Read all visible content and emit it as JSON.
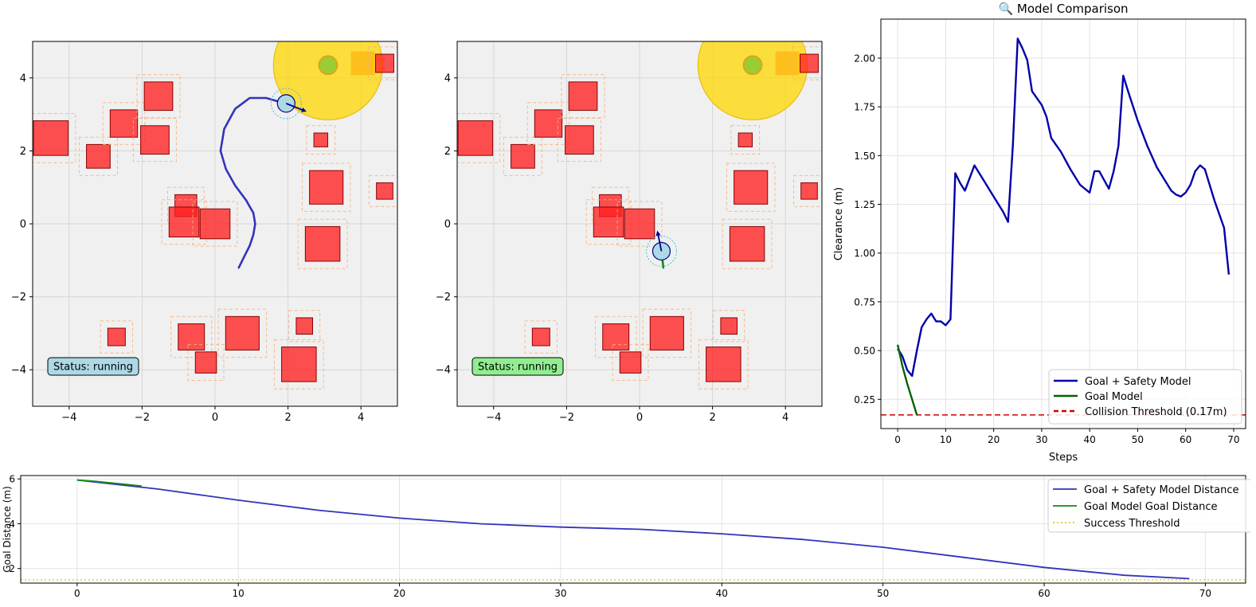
{
  "chart_data": [
    {
      "type": "scatter",
      "panel": "Goal + Safety Model environment",
      "xlim": [
        -5,
        5
      ],
      "ylim": [
        -5,
        5
      ],
      "xticks": [
        -4,
        -2,
        0,
        2,
        4
      ],
      "yticks": [
        -4,
        -2,
        0,
        2,
        4
      ],
      "grid": true,
      "status_text": "Status: running",
      "status_color": "#add8e6",
      "obstacles": [
        {
          "cx": -4.5,
          "cy": 2.35,
          "size": 0.95
        },
        {
          "cx": -3.2,
          "cy": 1.85,
          "size": 0.65
        },
        {
          "cx": -2.5,
          "cy": 2.75,
          "size": 0.75
        },
        {
          "cx": -1.55,
          "cy": 3.5,
          "size": 0.78
        },
        {
          "cx": -1.65,
          "cy": 2.3,
          "size": 0.78
        },
        {
          "cx": -0.8,
          "cy": 0.5,
          "size": 0.6
        },
        {
          "cx": -0.85,
          "cy": 0.05,
          "size": 0.82
        },
        {
          "cx": 0.0,
          "cy": 0.0,
          "size": 0.82
        },
        {
          "cx": 2.9,
          "cy": 2.3,
          "size": 0.38
        },
        {
          "cx": 3.05,
          "cy": 1.0,
          "size": 0.92
        },
        {
          "cx": 4.65,
          "cy": 0.9,
          "size": 0.45
        },
        {
          "cx": 2.95,
          "cy": -0.55,
          "size": 0.95
        },
        {
          "cx": -2.7,
          "cy": -3.1,
          "size": 0.48
        },
        {
          "cx": -0.65,
          "cy": -3.1,
          "size": 0.72
        },
        {
          "cx": -0.25,
          "cy": -3.8,
          "size": 0.58
        },
        {
          "cx": 0.75,
          "cy": -3.0,
          "size": 0.92
        },
        {
          "cx": 2.45,
          "cy": -2.8,
          "size": 0.45
        },
        {
          "cx": 2.3,
          "cy": -3.85,
          "size": 0.95
        },
        {
          "cx": 4.65,
          "cy": 4.4,
          "size": 0.5
        }
      ],
      "goal": {
        "x": 3.1,
        "y": 4.35,
        "radius": 1.5,
        "inner_radius": 0.25
      },
      "goal_box": {
        "cx": 4.05,
        "cy": 4.4,
        "size": 0.65
      },
      "agent": {
        "x": 1.95,
        "y": 3.3,
        "heading_x": 2.45,
        "heading_y": 3.1
      },
      "trajectory_color": "#3333bb",
      "trajectory": [
        [
          0.65,
          -1.2
        ],
        [
          0.8,
          -0.9
        ],
        [
          0.95,
          -0.6
        ],
        [
          1.05,
          -0.3
        ],
        [
          1.1,
          0.0
        ],
        [
          1.05,
          0.3
        ],
        [
          0.85,
          0.65
        ],
        [
          0.55,
          1.05
        ],
        [
          0.3,
          1.5
        ],
        [
          0.15,
          2.0
        ],
        [
          0.25,
          2.6
        ],
        [
          0.55,
          3.15
        ],
        [
          0.95,
          3.45
        ],
        [
          1.4,
          3.45
        ],
        [
          1.75,
          3.35
        ],
        [
          1.95,
          3.3
        ]
      ]
    },
    {
      "type": "scatter",
      "panel": "Goal Model environment",
      "xlim": [
        -5,
        5
      ],
      "ylim": [
        -5,
        5
      ],
      "xticks": [
        -4,
        -2,
        0,
        2,
        4
      ],
      "yticks": [
        -4,
        -2,
        0,
        2,
        4
      ],
      "grid": true,
      "status_text": "Status: running",
      "status_color": "#90ee90",
      "agent": {
        "x": 0.6,
        "y": -0.75,
        "heading_x": 0.5,
        "heading_y": -0.25
      },
      "trajectory_color": "#138a13",
      "trajectory": [
        [
          0.65,
          -1.2
        ],
        [
          0.63,
          -1.0
        ],
        [
          0.6,
          -0.75
        ]
      ]
    },
    {
      "type": "line",
      "title": "🔍 Model Comparison",
      "xlabel": "Steps",
      "ylabel": "Clearance (m)",
      "xlim": [
        -3.5,
        72.5
      ],
      "ylim": [
        0.1,
        2.2
      ],
      "xticks": [
        0,
        10,
        20,
        30,
        40,
        50,
        60,
        70
      ],
      "yticks": [
        0.25,
        0.5,
        0.75,
        1.0,
        1.25,
        1.5,
        1.75,
        2.0
      ],
      "ytick_labels": [
        "0.25",
        "0.50",
        "0.75",
        "1.00",
        "1.25",
        "1.50",
        "1.75",
        "2.00"
      ],
      "grid": true,
      "legend_position": "bottom-right",
      "series": [
        {
          "name": "Goal + Safety Model",
          "color": "#0000aa",
          "x": [
            0,
            1,
            2,
            3,
            4,
            5,
            6,
            7,
            8,
            9,
            10,
            11,
            12,
            13,
            14,
            16,
            18,
            20,
            22,
            23,
            24,
            25,
            26,
            27,
            28,
            30,
            31,
            32,
            34,
            36,
            38,
            40,
            41,
            42,
            44,
            45,
            46,
            47,
            48,
            50,
            52,
            54,
            56,
            57,
            58,
            59,
            60,
            61,
            62,
            63,
            64,
            66,
            68,
            69
          ],
          "y": [
            0.51,
            0.47,
            0.4,
            0.37,
            0.5,
            0.62,
            0.66,
            0.69,
            0.65,
            0.65,
            0.63,
            0.66,
            1.41,
            1.36,
            1.32,
            1.45,
            1.37,
            1.29,
            1.21,
            1.16,
            1.55,
            2.1,
            2.05,
            1.99,
            1.83,
            1.76,
            1.7,
            1.59,
            1.52,
            1.43,
            1.35,
            1.31,
            1.42,
            1.42,
            1.33,
            1.42,
            1.55,
            1.91,
            1.83,
            1.68,
            1.55,
            1.44,
            1.36,
            1.32,
            1.3,
            1.29,
            1.31,
            1.35,
            1.42,
            1.45,
            1.43,
            1.27,
            1.13,
            0.89
          ]
        },
        {
          "name": "Goal Model",
          "color": "#006400",
          "x": [
            0,
            1,
            2,
            3,
            4
          ],
          "y": [
            0.53,
            0.42,
            0.33,
            0.25,
            0.17
          ]
        }
      ],
      "threshold": {
        "name": "Collision Threshold (0.17m)",
        "value": 0.17,
        "color": "#cc0000"
      }
    },
    {
      "type": "line",
      "ylabel": "Goal Distance (m)",
      "xlim": [
        -3.5,
        72.5
      ],
      "ylim": [
        1.35,
        6.15
      ],
      "xticks": [
        0,
        10,
        20,
        30,
        40,
        50,
        60,
        70
      ],
      "yticks": [
        2,
        4,
        6
      ],
      "grid": true,
      "legend_position": "top-right",
      "series": [
        {
          "name": "Goal + Safety Model Distance",
          "color": "#3333bb",
          "x": [
            0,
            5,
            10,
            15,
            20,
            25,
            30,
            35,
            40,
            45,
            50,
            55,
            60,
            65,
            69
          ],
          "y": [
            5.95,
            5.55,
            5.05,
            4.6,
            4.25,
            4.0,
            3.85,
            3.75,
            3.55,
            3.3,
            2.95,
            2.5,
            2.05,
            1.7,
            1.55
          ]
        },
        {
          "name": "Goal Model Goal Distance",
          "color": "#138a13",
          "x": [
            0,
            1,
            2,
            3,
            4
          ],
          "y": [
            5.95,
            5.9,
            5.83,
            5.76,
            5.68
          ]
        }
      ],
      "threshold": {
        "name": "Success Threshold",
        "value": 1.5,
        "color": "#e5d000"
      }
    }
  ]
}
